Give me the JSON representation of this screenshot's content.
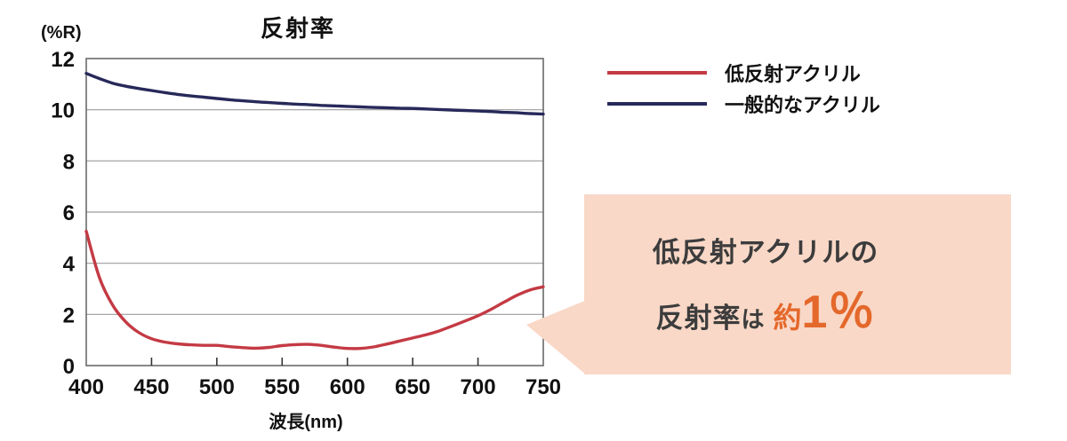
{
  "chart_data": {
    "type": "line",
    "title": "反射率",
    "ylabel": "(%R)",
    "xlabel": "波長(nm)",
    "xlim": [
      400,
      750
    ],
    "ylim": [
      0,
      12
    ],
    "x_ticks": [
      "400",
      "450",
      "500",
      "550",
      "600",
      "650",
      "700",
      "750"
    ],
    "y_ticks": [
      "0",
      "2",
      "4",
      "6",
      "8",
      "10",
      "12"
    ],
    "grid": "horizontal",
    "legend_position": "outside-top-right",
    "x": [
      400,
      410,
      420,
      430,
      440,
      450,
      460,
      470,
      480,
      490,
      500,
      510,
      520,
      530,
      540,
      550,
      560,
      570,
      580,
      590,
      600,
      610,
      620,
      630,
      640,
      650,
      660,
      670,
      680,
      690,
      700,
      710,
      720,
      730,
      740,
      750
    ],
    "series": [
      {
        "name": "低反射アクリル",
        "color": "#c43a44",
        "values": [
          5.25,
          3.45,
          2.38,
          1.72,
          1.3,
          1.05,
          0.92,
          0.85,
          0.81,
          0.79,
          0.79,
          0.74,
          0.7,
          0.68,
          0.71,
          0.78,
          0.82,
          0.83,
          0.79,
          0.72,
          0.67,
          0.67,
          0.73,
          0.84,
          0.96,
          1.08,
          1.2,
          1.35,
          1.54,
          1.74,
          1.95,
          2.2,
          2.48,
          2.75,
          2.96,
          3.08
        ]
      },
      {
        "name": "一般的なアクリル",
        "color": "#27295a",
        "values": [
          11.42,
          11.22,
          11.04,
          10.92,
          10.83,
          10.75,
          10.67,
          10.6,
          10.54,
          10.49,
          10.44,
          10.39,
          10.35,
          10.31,
          10.28,
          10.25,
          10.22,
          10.2,
          10.17,
          10.15,
          10.13,
          10.11,
          10.09,
          10.08,
          10.06,
          10.05,
          10.03,
          10.01,
          9.99,
          9.97,
          9.95,
          9.93,
          9.9,
          9.88,
          9.85,
          9.83
        ]
      }
    ],
    "axis_color": "#6a6a6a",
    "gridline_color": "#9b9b9b"
  },
  "callout": {
    "line1": "低反射アクリルの",
    "line2_text": "反射率",
    "line2_particle": "は",
    "approx": "約",
    "value": "1％",
    "bg_color": "#f9d8c7",
    "accent_color": "#e4682b"
  }
}
